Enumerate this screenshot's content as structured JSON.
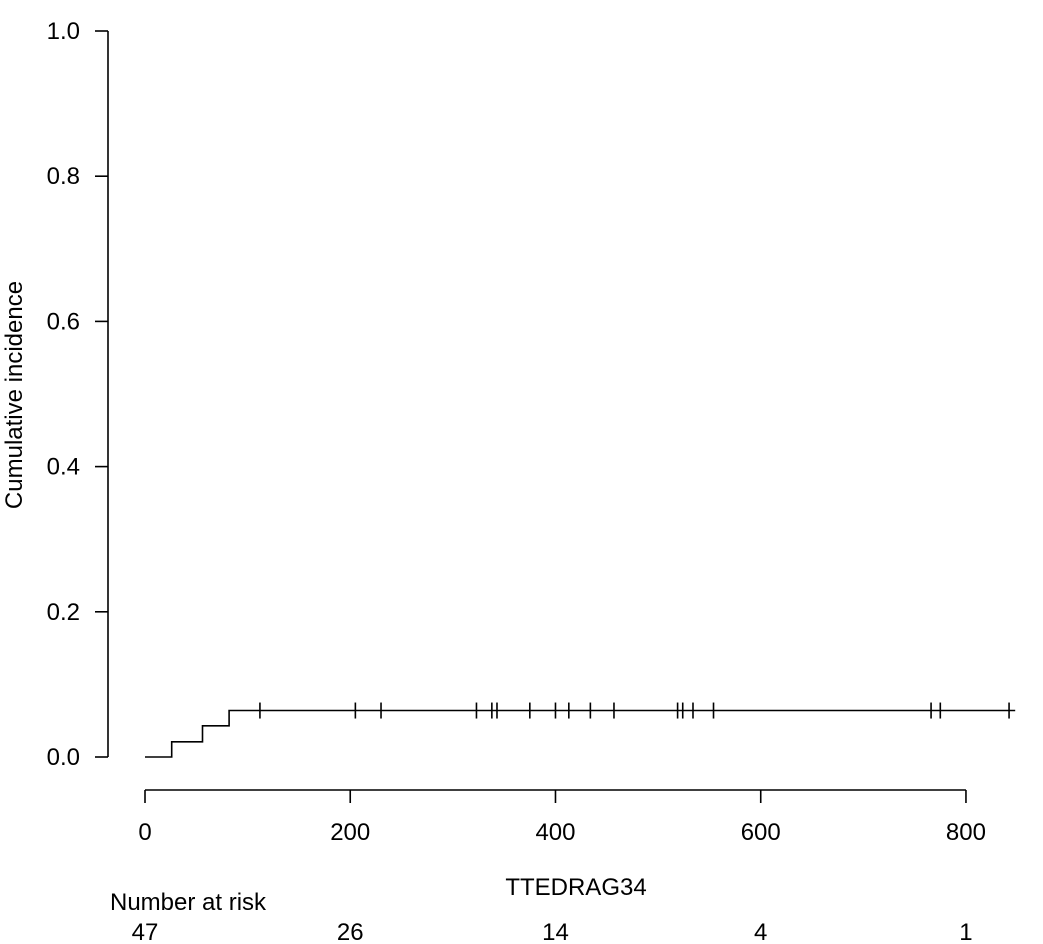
{
  "chart_data": {
    "type": "line",
    "title": "",
    "xlabel": "TTEDRAG34",
    "ylabel": "Cumulative incidence",
    "xlim": [
      0,
      840
    ],
    "ylim": [
      0,
      1.0
    ],
    "x_ticks": [
      "0",
      "200",
      "400",
      "600",
      "800"
    ],
    "y_ticks": [
      "0.0",
      "0.2",
      "0.4",
      "0.6",
      "0.8",
      "1.0"
    ],
    "grid": false,
    "series": [
      {
        "step": [
          [
            0,
            0.0
          ],
          [
            26,
            0.0
          ],
          [
            26,
            0.021
          ],
          [
            56,
            0.021
          ],
          [
            56,
            0.043
          ],
          [
            82,
            0.043
          ],
          [
            82,
            0.064
          ],
          [
            848,
            0.064
          ]
        ],
        "censor_times": [
          112,
          205,
          230,
          323,
          338,
          343,
          375,
          400,
          413,
          434,
          457,
          519,
          524,
          534,
          554,
          766,
          775,
          842
        ]
      }
    ],
    "risk_table": {
      "label": "Number at risk",
      "times": [
        0,
        200,
        400,
        600,
        800
      ],
      "counts": [
        "47",
        "26",
        "14",
        "4",
        "1"
      ]
    }
  }
}
